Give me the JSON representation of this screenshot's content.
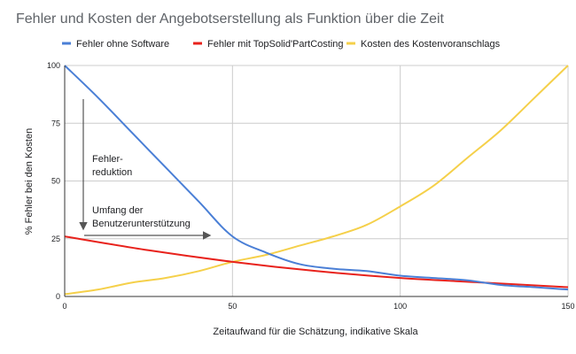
{
  "chart_data": {
    "type": "line",
    "title": "Fehler und Kosten der Angebotserstellung als Funktion über die Zeit",
    "xlabel": "Zeitaufwand für die Schätzung, indikative Skala",
    "ylabel": "% Fehler bei den Kosten",
    "xlim": [
      0,
      150
    ],
    "ylim": [
      0,
      100
    ],
    "x_ticks": [
      "0",
      "50",
      "100",
      "150"
    ],
    "y_ticks": [
      "0",
      "25",
      "50",
      "75",
      "100"
    ],
    "grid": true,
    "legend_position": "top",
    "series": [
      {
        "name": "Fehler ohne Software",
        "color": "#4a7fd6",
        "x": [
          0,
          10,
          20,
          30,
          40,
          50,
          60,
          70,
          80,
          90,
          100,
          110,
          120,
          130,
          140,
          150
        ],
        "y": [
          100,
          86,
          71,
          56,
          41,
          26,
          19,
          14,
          12,
          11,
          9,
          8,
          7,
          5,
          4,
          3
        ]
      },
      {
        "name": "Fehler mit TopSolid'PartCosting",
        "color": "#e8221c",
        "x": [
          0,
          25,
          50,
          75,
          100,
          125,
          150
        ],
        "y": [
          26,
          20,
          15,
          11,
          8,
          6,
          4
        ]
      },
      {
        "name": "Kosten des Kostenvoranschlags",
        "color": "#f5d04a",
        "x": [
          0,
          10,
          20,
          30,
          40,
          50,
          60,
          70,
          80,
          90,
          100,
          110,
          120,
          130,
          140,
          150
        ],
        "y": [
          1,
          3,
          6,
          8,
          11,
          15,
          18,
          22,
          26,
          31,
          39,
          48,
          60,
          72,
          86,
          100
        ]
      }
    ],
    "annotations": {
      "reduction": [
        "Fehler-",
        "reduktion"
      ],
      "support": [
        "Umfang der",
        "Benutzerunterstützung"
      ]
    }
  }
}
